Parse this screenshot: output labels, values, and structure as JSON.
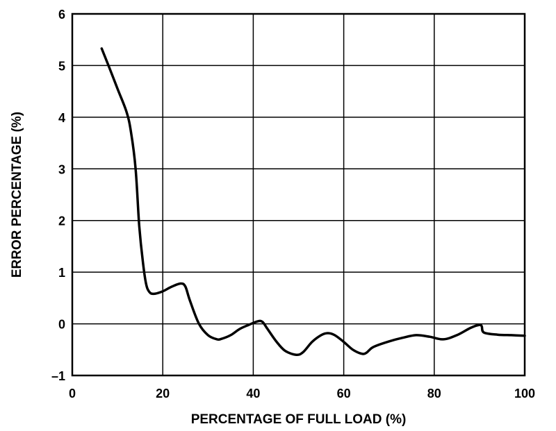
{
  "chart_data": {
    "type": "line",
    "title": "",
    "xlabel": "PERCENTAGE OF FULL LOAD (%)",
    "ylabel": "ERROR PERCENTAGE (%)",
    "xlim": [
      0,
      100
    ],
    "ylim": [
      -1,
      6
    ],
    "xticks": [
      0,
      20,
      40,
      60,
      80,
      100
    ],
    "yticks": [
      -1,
      0,
      1,
      2,
      3,
      4,
      5,
      6
    ],
    "xtick_labels": [
      "0",
      "20",
      "40",
      "60",
      "80",
      "100"
    ],
    "ytick_labels": [
      "–1",
      "0",
      "1",
      "2",
      "3",
      "4",
      "5",
      "6"
    ],
    "grid": true,
    "legend": "none",
    "line_color": "#000000",
    "series": [
      {
        "x": [
          6.5,
          8,
          10,
          12,
          13,
          14,
          14.8,
          15.6,
          16.3,
          17,
          18,
          20,
          22,
          24,
          25,
          26,
          28,
          30,
          32,
          33,
          35,
          37,
          39,
          41,
          42,
          43,
          45,
          47,
          49.5,
          51,
          53,
          55,
          56.5,
          58,
          60,
          62,
          64,
          65,
          66,
          67,
          70,
          73,
          76,
          79,
          82,
          85,
          88,
          90,
          90.5,
          91,
          94,
          97,
          100
        ],
        "y": [
          5.33,
          5.0,
          4.55,
          4.1,
          3.7,
          3.0,
          1.9,
          1.2,
          0.78,
          0.62,
          0.58,
          0.63,
          0.72,
          0.78,
          0.72,
          0.45,
          0.0,
          -0.22,
          -0.3,
          -0.29,
          -0.22,
          -0.1,
          -0.02,
          0.05,
          0.04,
          -0.08,
          -0.33,
          -0.52,
          -0.6,
          -0.55,
          -0.35,
          -0.22,
          -0.18,
          -0.22,
          -0.35,
          -0.5,
          -0.58,
          -0.56,
          -0.48,
          -0.43,
          -0.34,
          -0.27,
          -0.22,
          -0.25,
          -0.3,
          -0.22,
          -0.08,
          -0.02,
          -0.05,
          -0.17,
          -0.21,
          -0.22,
          -0.23
        ]
      }
    ]
  }
}
